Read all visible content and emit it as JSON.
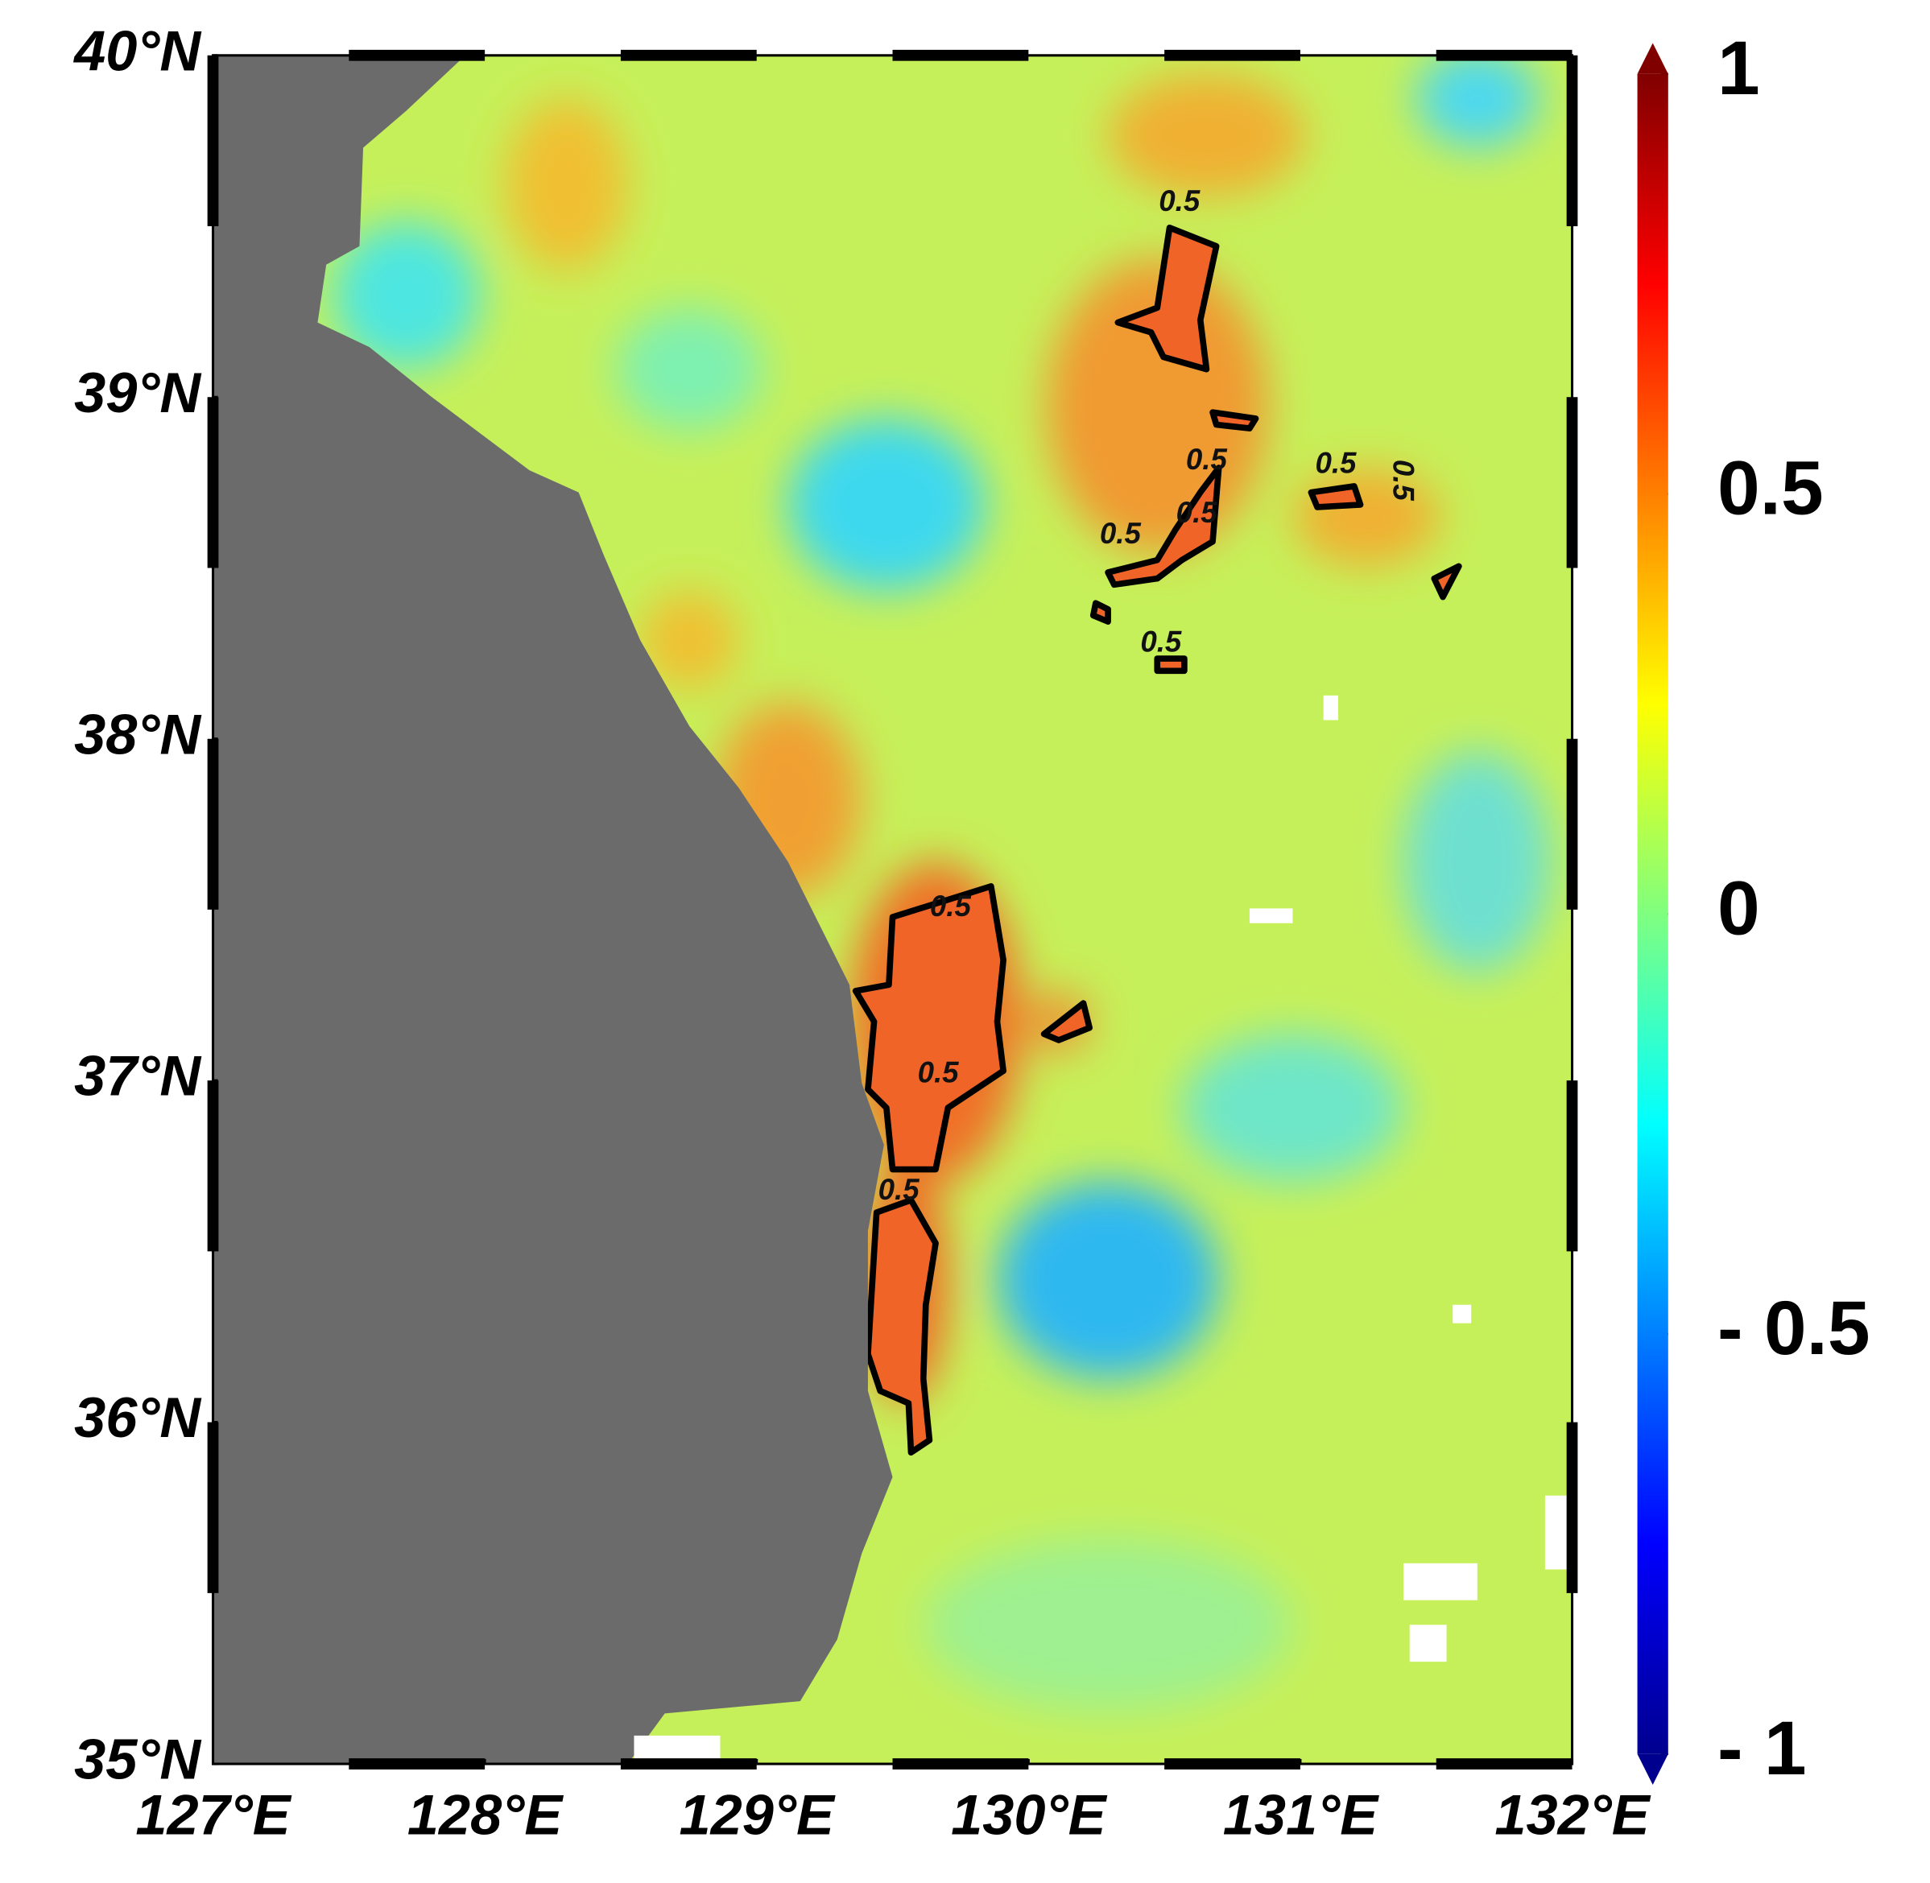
{
  "map": {
    "lat_lim": [
      35,
      40
    ],
    "lon_lim": [
      127,
      132
    ],
    "lat_ticks": [
      {
        "value": 40,
        "label": "40°N"
      },
      {
        "value": 39,
        "label": "39°N"
      },
      {
        "value": 38,
        "label": "38°N"
      },
      {
        "value": 37,
        "label": "37°N"
      },
      {
        "value": 36,
        "label": "36°N"
      },
      {
        "value": 35,
        "label": "35°N"
      }
    ],
    "lon_ticks": [
      {
        "value": 127,
        "label": "127°E"
      },
      {
        "value": 128,
        "label": "128°E"
      },
      {
        "value": 129,
        "label": "129°E"
      },
      {
        "value": 130,
        "label": "130°E"
      },
      {
        "value": 131,
        "label": "131°E"
      },
      {
        "value": 132,
        "label": "132°E"
      }
    ],
    "contour": {
      "level": 0.5
    },
    "colorbar": {
      "range": [
        -1,
        1
      ],
      "ticks": [
        1,
        0.5,
        0,
        {
          "value": -0.5,
          "label": "- 0.5"
        },
        {
          "value": -1,
          "label": "- 1"
        }
      ]
    }
  }
}
